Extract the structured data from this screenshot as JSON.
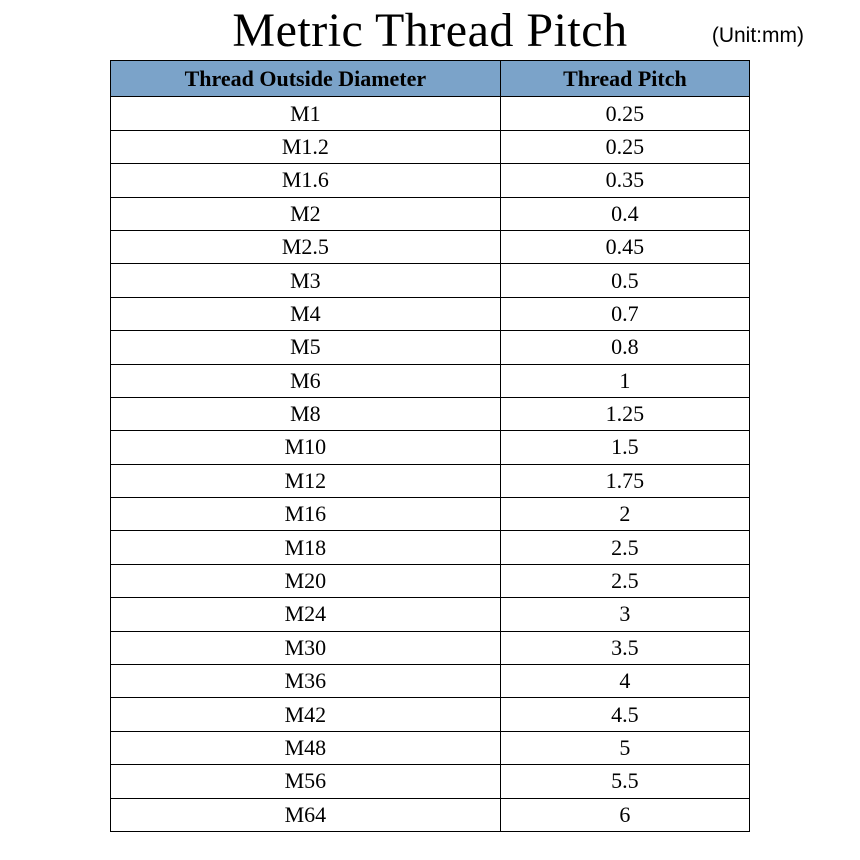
{
  "title": "Metric Thread Pitch",
  "unit_label": "(Unit:mm)",
  "table": {
    "type": "table",
    "header_bg": "#7ba3c9",
    "border_color": "#000000",
    "text_color": "#000000",
    "title_fontsize": 48,
    "header_fontsize": 22,
    "cell_fontsize": 22,
    "col_widths_pct": [
      61,
      39
    ],
    "columns": [
      "Thread Outside Diameter",
      "Thread Pitch"
    ],
    "rows": [
      [
        "M1",
        "0.25"
      ],
      [
        "M1.2",
        "0.25"
      ],
      [
        "M1.6",
        "0.35"
      ],
      [
        "M2",
        "0.4"
      ],
      [
        "M2.5",
        "0.45"
      ],
      [
        "M3",
        "0.5"
      ],
      [
        "M4",
        "0.7"
      ],
      [
        "M5",
        "0.8"
      ],
      [
        "M6",
        "1"
      ],
      [
        "M8",
        "1.25"
      ],
      [
        "M10",
        "1.5"
      ],
      [
        "M12",
        "1.75"
      ],
      [
        "M16",
        "2"
      ],
      [
        "M18",
        "2.5"
      ],
      [
        "M20",
        "2.5"
      ],
      [
        "M24",
        "3"
      ],
      [
        "M30",
        "3.5"
      ],
      [
        "M36",
        "4"
      ],
      [
        "M42",
        "4.5"
      ],
      [
        "M48",
        "5"
      ],
      [
        "M56",
        "5.5"
      ],
      [
        "M64",
        "6"
      ]
    ]
  }
}
